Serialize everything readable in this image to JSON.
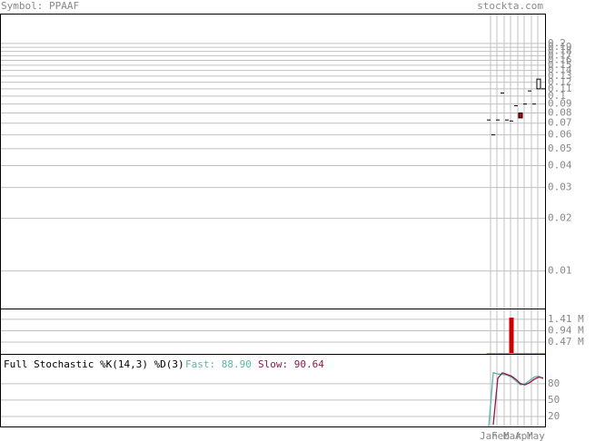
{
  "chart_data": [
    {
      "type": "candlestick",
      "title": "Symbol: PPAAF",
      "source": "stockta.com",
      "open": [
        0.073,
        0.06,
        0.073,
        0.104,
        0.073,
        0.072,
        0.088,
        0.08,
        0.09,
        0.107,
        0.09,
        0.11,
        0.11
      ],
      "close": [
        0.073,
        0.06,
        0.073,
        0.104,
        0.073,
        0.072,
        0.088,
        0.075,
        0.09,
        0.107,
        0.09,
        0.125,
        0.11
      ],
      "up_color": "#ffffff",
      "down_color": "#cc0000",
      "log_scale": true,
      "grid": true,
      "ylim": [
        0.0061,
        0.296
      ],
      "yticks": [
        0.2,
        0.19,
        0.18,
        0.17,
        0.16,
        0.15,
        0.14,
        0.13,
        0.12,
        0.11,
        0.1,
        0.09,
        0.08,
        0.07,
        0.06,
        0.05,
        0.04,
        0.03,
        0.02,
        0.01
      ]
    },
    {
      "type": "bar",
      "values": [
        0.02,
        0.02,
        0.02,
        0.02,
        0.02,
        1.48,
        0.02,
        0.02,
        0.02,
        0.02,
        0.02,
        0.02,
        0.02
      ],
      "color": "#cc0000",
      "grid": true,
      "ylim": [
        0,
        1.82
      ],
      "yticks": [
        {
          "value": 1.41,
          "label": "1.41 M"
        },
        {
          "value": 0.94,
          "label": "0.94 M"
        },
        {
          "value": 0.47,
          "label": "0.47 M"
        }
      ]
    },
    {
      "type": "line",
      "title": "Full Stochastic %K(14,3) %D(3)",
      "fast_label": "Fast: 88.90",
      "slow_label": "Slow: 90.64",
      "series": [
        {
          "name": "Fast",
          "color": "#5fb3a8",
          "values": [
            2,
            100,
            98,
            97,
            96,
            92,
            85,
            78,
            80,
            86,
            92,
            94,
            88.9
          ]
        },
        {
          "name": "Slow",
          "color": "#8b1a4a",
          "values": [
            null,
            5,
            90,
            100,
            97,
            94,
            88,
            80,
            78,
            82,
            88,
            92,
            90.64
          ]
        }
      ],
      "grid": true,
      "ylim": [
        0,
        133
      ],
      "yticks": [
        80,
        50,
        20
      ],
      "month_labels": [
        "Jan",
        "Feb",
        "Mar",
        "Apr",
        "May"
      ]
    }
  ]
}
